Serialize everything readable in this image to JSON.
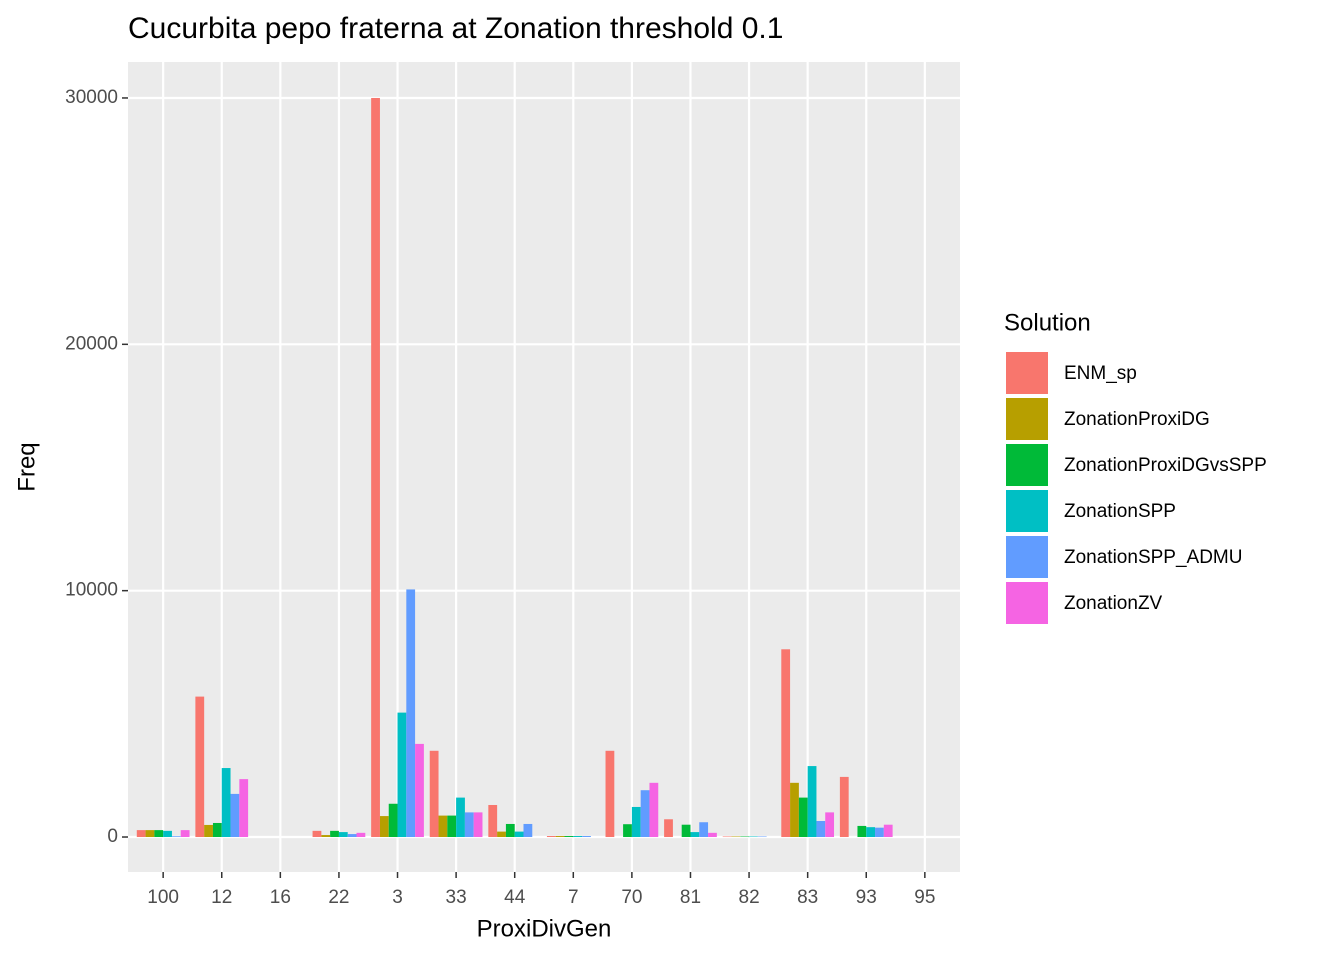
{
  "chart_data": {
    "type": "bar",
    "title": "Cucurbita pepo fraterna at Zonation threshold 0.1",
    "x_label": "ProxiDivGen",
    "y_label": "Freq",
    "legend_title": "Solution",
    "categories": [
      "100",
      "12",
      "16",
      "22",
      "3",
      "33",
      "44",
      "7",
      "70",
      "81",
      "82",
      "83",
      "93",
      "95"
    ],
    "series": [
      {
        "name": "ENM_sp",
        "color": "#F8766D",
        "values": [
          280,
          5700,
          null,
          250,
          30000,
          3500,
          1300,
          40,
          3500,
          720,
          20,
          7620,
          2440,
          null
        ]
      },
      {
        "name": "ZonationProxiDG",
        "color": "#B79F00",
        "values": [
          280,
          490,
          null,
          80,
          850,
          870,
          220,
          40,
          null,
          null,
          20,
          2200,
          null,
          null
        ]
      },
      {
        "name": "ZonationProxiDGvsSPP",
        "color": "#00BA38",
        "values": [
          280,
          570,
          null,
          250,
          1350,
          870,
          530,
          40,
          520,
          500,
          20,
          1600,
          450,
          null
        ]
      },
      {
        "name": "ZonationSPP",
        "color": "#00BFC4",
        "values": [
          250,
          2800,
          null,
          200,
          5050,
          1600,
          220,
          40,
          1220,
          200,
          20,
          2880,
          400,
          null
        ]
      },
      {
        "name": "ZonationSPP_ADMU",
        "color": "#619CFF",
        "values": [
          30,
          1750,
          null,
          120,
          10050,
          1000,
          530,
          40,
          1900,
          600,
          20,
          650,
          380,
          null
        ]
      },
      {
        "name": "ZonationZV",
        "color": "#F564E3",
        "values": [
          280,
          2350,
          null,
          170,
          3780,
          1000,
          null,
          null,
          2200,
          170,
          null,
          1000,
          500,
          null
        ]
      }
    ],
    "ylim": [
      -1420,
      31460
    ],
    "yticks": [
      0,
      10000,
      20000,
      30000
    ],
    "grid": true,
    "legend": "right"
  }
}
